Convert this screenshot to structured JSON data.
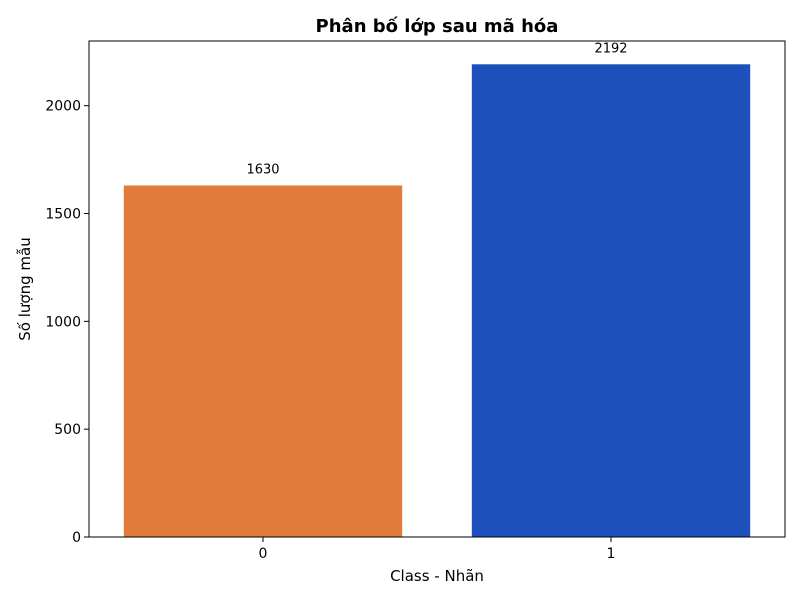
{
  "chart_data": {
    "type": "bar",
    "title": "Phân bố lớp sau mã hóa",
    "xlabel": "Class - Nhãn",
    "ylabel": "Số lượng mẫu",
    "categories": [
      "0",
      "1"
    ],
    "values": [
      1630,
      2192
    ],
    "data_labels": [
      "1630",
      "2192"
    ],
    "colors": [
      "#e07b3c",
      "#1d50bb"
    ],
    "ylim": [
      0,
      2300
    ],
    "yticks": [
      0,
      500,
      1000,
      1500,
      2000
    ],
    "ytick_labels": [
      "0",
      "500",
      "1000",
      "1500",
      "2000"
    ],
    "grid": false,
    "legend": "none"
  }
}
